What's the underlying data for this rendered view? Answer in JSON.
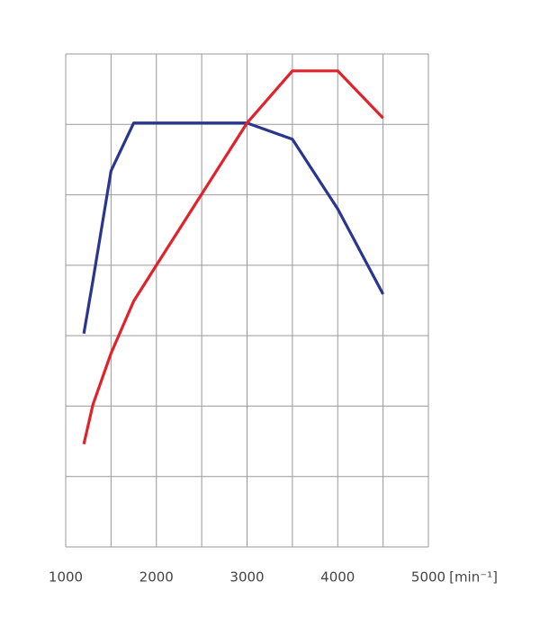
{
  "chart_data": {
    "type": "line",
    "x": [
      1200,
      1300,
      1500,
      1750,
      2000,
      2500,
      3000,
      3500,
      4000,
      4500
    ],
    "series": [
      {
        "color": "#2a3590",
        "values": [
          3.03,
          3.78,
          5.34,
          6.02,
          6.02,
          6.02,
          6.02,
          5.79,
          4.8,
          3.59
        ]
      },
      {
        "color": "#e1222b",
        "values": [
          1.46,
          2.02,
          2.75,
          3.49,
          4.0,
          5.01,
          6.02,
          6.76,
          6.76,
          6.09
        ]
      }
    ],
    "xlim": [
      1000,
      5000
    ],
    "xticks": [
      1000,
      2000,
      3000,
      4000,
      5000
    ],
    "xminor": [
      1500,
      2500,
      3500,
      4500
    ],
    "ylim": [
      0,
      7
    ],
    "ygrid": [
      0,
      1,
      2,
      3,
      4,
      5,
      6,
      7
    ],
    "xlabel": "[min⁻¹]",
    "grid": true
  }
}
